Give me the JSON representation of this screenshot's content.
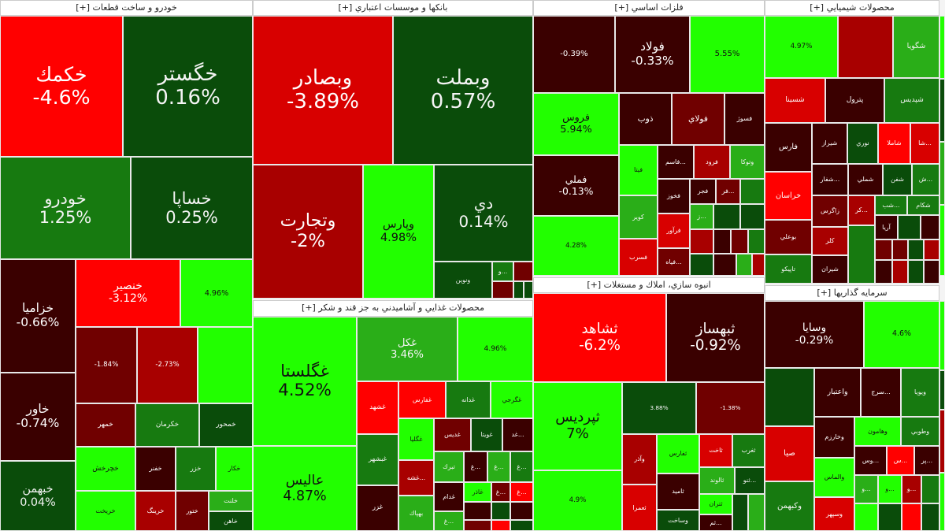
{
  "sections": [
    {
      "title": "خودرو و ساخت قطعات [+]",
      "tiles": [
        {
          "symbol": "خكمك",
          "change": "-4.6%"
        },
        {
          "symbol": "خگستر",
          "change": "0.16%"
        },
        {
          "symbol": "خودرو",
          "change": "1.25%"
        },
        {
          "symbol": "خساپا",
          "change": "0.25%"
        },
        {
          "symbol": "خزاميا",
          "change": "-0.66%"
        },
        {
          "symbol": "خاور",
          "change": "-0.74%"
        },
        {
          "symbol": "خبهمن",
          "change": "0.04%"
        },
        {
          "symbol": "خنصير",
          "change": "-3.12%"
        },
        {
          "symbol": "",
          "change": "4.96%"
        },
        {
          "symbol": "",
          "change": "-1.84%"
        },
        {
          "symbol": "",
          "change": "-2.73%"
        },
        {
          "symbol": "خمهر"
        },
        {
          "symbol": "خكرمان"
        },
        {
          "symbol": "خمحور"
        },
        {
          "symbol": "خچرخش"
        },
        {
          "symbol": "خريخت"
        },
        {
          "symbol": "خفنر"
        },
        {
          "symbol": "خزر"
        },
        {
          "symbol": "خكار"
        },
        {
          "symbol": "خرينگ"
        },
        {
          "symbol": "ختور"
        },
        {
          "symbol": "خلنت"
        },
        {
          "symbol": "خاهن"
        }
      ]
    },
    {
      "title": "بانكها و موسسات اعتباري [+]",
      "tiles": [
        {
          "symbol": "وبصادر",
          "change": "-3.89%"
        },
        {
          "symbol": "وبملت",
          "change": "0.57%"
        },
        {
          "symbol": "وتجارت",
          "change": "-2%"
        },
        {
          "symbol": "وپارس",
          "change": "4.98%"
        },
        {
          "symbol": "دي",
          "change": "0.14%"
        },
        {
          "symbol": "ونوين"
        },
        {
          "symbol": "...و"
        }
      ]
    },
    {
      "title": "محصولات غذايي و آشاميدني به جز قند و شكر [+]",
      "tiles": [
        {
          "symbol": "غگلستا",
          "change": "4.52%"
        },
        {
          "symbol": "عاليس",
          "change": "4.87%"
        },
        {
          "symbol": "غكل",
          "change": "3.46%"
        },
        {
          "symbol": "",
          "change": "4.96%"
        },
        {
          "symbol": "غشهد"
        },
        {
          "symbol": "غفارس"
        },
        {
          "symbol": "غدانه"
        },
        {
          "symbol": "غگرجي"
        },
        {
          "symbol": "غبشهر"
        },
        {
          "symbol": "غزر"
        },
        {
          "symbol": "غگليا"
        },
        {
          "symbol": "...غشه"
        },
        {
          "symbol": "بهپاك"
        },
        {
          "symbol": "غديس"
        },
        {
          "symbol": "غويتا"
        },
        {
          "symbol": "...غد"
        },
        {
          "symbol": "تبرك"
        },
        {
          "symbol": "...غ"
        },
        {
          "symbol": "...غ"
        },
        {
          "symbol": "...غ"
        },
        {
          "symbol": "غدام"
        },
        {
          "symbol": "غاذر"
        },
        {
          "symbol": "...غ"
        },
        {
          "symbol": "...غ"
        },
        {
          "symbol": "...غ"
        }
      ]
    },
    {
      "title": "فلزات اساسي [+]",
      "tiles": [
        {
          "symbol": "",
          "change": "-0.39%"
        },
        {
          "symbol": "فولاد",
          "change": "-0.33%"
        },
        {
          "symbol": "",
          "change": "5.55%"
        },
        {
          "symbol": "فروس",
          "change": "5.94%"
        },
        {
          "symbol": "فملي",
          "change": "-0.13%"
        },
        {
          "symbol": "",
          "change": "4.28%"
        },
        {
          "symbol": "ذوب"
        },
        {
          "symbol": "فولاي"
        },
        {
          "symbol": "فسوژ"
        },
        {
          "symbol": "فيتا"
        },
        {
          "symbol": "كوير"
        },
        {
          "symbol": "فسرب"
        },
        {
          "symbol": "...فاسم"
        },
        {
          "symbol": "فرود"
        },
        {
          "symbol": "وتوكا"
        },
        {
          "symbol": "فخوز"
        },
        {
          "symbol": "فجر"
        },
        {
          "symbol": "...فر"
        },
        {
          "symbol": "...ز"
        },
        {
          "symbol": "فرآور"
        },
        {
          "symbol": "...فياه"
        }
      ]
    },
    {
      "title": "انبوه سازي، املاك و مستغلات [+]",
      "tiles": [
        {
          "symbol": "ثشاهد",
          "change": "-6.2%"
        },
        {
          "symbol": "ثبهساز",
          "change": "-0.92%"
        },
        {
          "symbol": "ثپرديس",
          "change": "7%"
        },
        {
          "symbol": "",
          "change": "4.9%"
        },
        {
          "symbol": "",
          "change": "3.88%"
        },
        {
          "symbol": "",
          "change": "-1.38%"
        },
        {
          "symbol": "وآذر"
        },
        {
          "symbol": "ثعمرا"
        },
        {
          "symbol": "ثفارس"
        },
        {
          "symbol": "ثاميد"
        },
        {
          "symbol": "وساخت"
        },
        {
          "symbol": "ثاخت"
        },
        {
          "symbol": "ثغرب"
        },
        {
          "symbol": "ثالوند"
        },
        {
          "symbol": "...ثنو"
        },
        {
          "symbol": "ثتران"
        },
        {
          "symbol": "...ثم"
        }
      ]
    },
    {
      "title": "محصولات شيميايي [+]",
      "tiles": [
        {
          "symbol": "",
          "change": "4.97%"
        },
        {
          "symbol": "شگويا"
        },
        {
          "symbol": "شسينا"
        },
        {
          "symbol": "پترول"
        },
        {
          "symbol": "شپديس"
        },
        {
          "symbol": "فارس"
        },
        {
          "symbol": "خراسان"
        },
        {
          "symbol": "بوعلي"
        },
        {
          "symbol": "تاپيكو"
        },
        {
          "symbol": "شيراز"
        },
        {
          "symbol": "نوري"
        },
        {
          "symbol": "شاملا"
        },
        {
          "symbol": "...شا"
        },
        {
          "symbol": "...شفار"
        },
        {
          "symbol": "شملي"
        },
        {
          "symbol": "شفن"
        },
        {
          "symbol": "...ش"
        },
        {
          "symbol": "زاگرس"
        },
        {
          "symbol": "...كر"
        },
        {
          "symbol": "...شب"
        },
        {
          "symbol": "شكام"
        },
        {
          "symbol": "كلر"
        },
        {
          "symbol": "شيران"
        },
        {
          "symbol": "آريا"
        }
      ]
    },
    {
      "title": "سرمايه گذاريها [+]",
      "tiles": [
        {
          "symbol": "وسايا",
          "change": "-0.29%"
        },
        {
          "symbol": "",
          "change": "4.6%"
        },
        {
          "symbol": "واعتبار"
        },
        {
          "symbol": "...سرج"
        },
        {
          "symbol": "ويويا"
        },
        {
          "symbol": "صيا"
        },
        {
          "symbol": "وكبهمن"
        },
        {
          "symbol": "وخارزم"
        },
        {
          "symbol": "والماس"
        },
        {
          "symbol": "وسپهر"
        },
        {
          "symbol": "وهامون"
        },
        {
          "symbol": "وطوبي"
        },
        {
          "symbol": "...وس"
        },
        {
          "symbol": "...س"
        },
        {
          "symbol": "...پر"
        },
        {
          "symbol": "...و"
        },
        {
          "symbol": "...و"
        },
        {
          "symbol": "...و"
        }
      ]
    }
  ]
}
